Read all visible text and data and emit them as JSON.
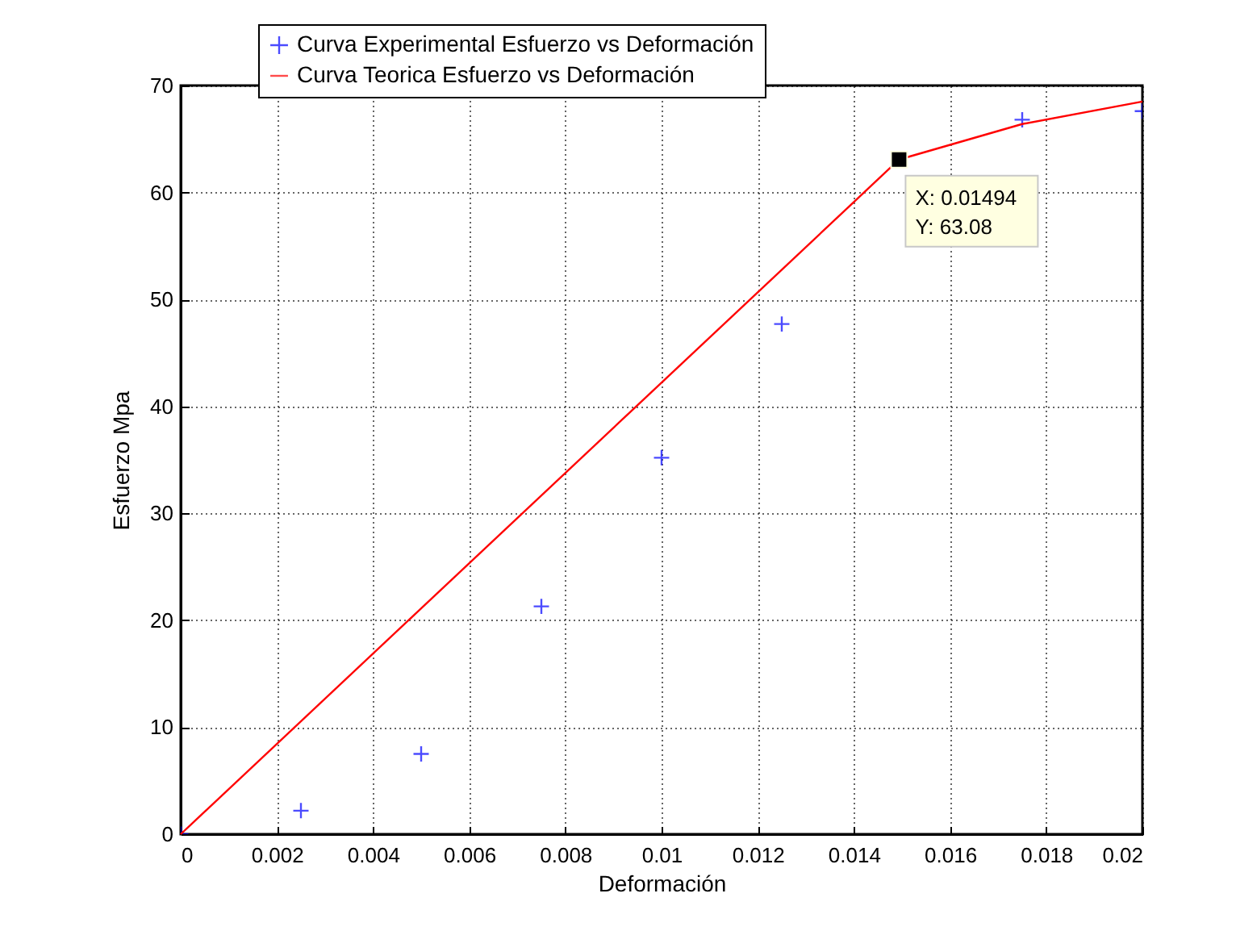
{
  "chart_data": {
    "type": "line",
    "xlabel": "Deformación",
    "ylabel": "Esfuerzo Mpa",
    "xlim": [
      0,
      0.02
    ],
    "xticks": [
      0,
      0.002,
      0.004,
      0.006,
      0.008,
      0.01,
      0.012,
      0.014,
      0.016,
      0.018,
      0.02
    ],
    "ylim": [
      0,
      70
    ],
    "yticks": [
      0,
      10,
      20,
      30,
      40,
      50,
      60,
      70
    ],
    "grid": true,
    "legend": "top",
    "series": [
      {
        "name": "Curva Experimental Esfuerzo vs Deformación",
        "type": "scatter",
        "marker": "cross",
        "color": "#0000ff",
        "x": [
          0,
          0.0025,
          0.005,
          0.0075,
          0.01,
          0.0125,
          0.0175,
          0.02
        ],
        "values": [
          0,
          2.2,
          7.5,
          21.3,
          35.2,
          47.7,
          66.8,
          67.6
        ]
      },
      {
        "name": "Curva Teorica Esfuerzo vs Deformación",
        "type": "line",
        "line_style": "solid",
        "color": "#ff0000",
        "x": [
          0,
          0.01494,
          0.0175,
          0.02
        ],
        "values": [
          0,
          63.08,
          66.4,
          68.5
        ]
      }
    ],
    "annotations": [
      {
        "text": "X: 0.01494\nY: 63.08",
        "x": 0.01494,
        "y": 63.08
      }
    ]
  }
}
